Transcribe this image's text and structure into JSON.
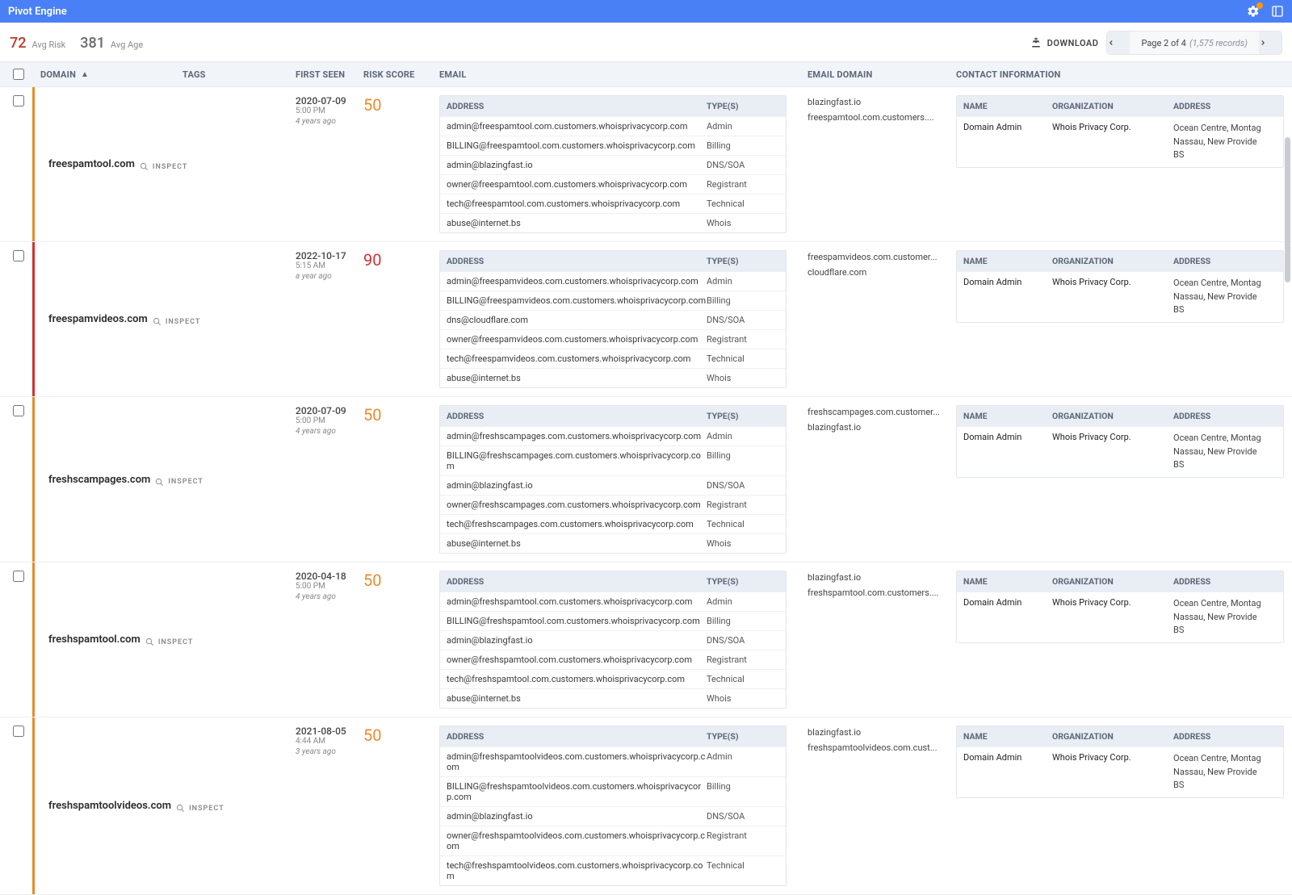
{
  "app": {
    "title": "Pivot Engine"
  },
  "summary": {
    "avg_risk": "72",
    "avg_risk_label": "Avg Risk",
    "avg_age": "381",
    "avg_age_label": "Avg Age"
  },
  "toolbar": {
    "download_label": "DOWNLOAD",
    "page_label": "Page 2 of 4",
    "records_label": "(1,575 records)"
  },
  "columns": {
    "domain": "DOMAIN",
    "tags": "TAGS",
    "first_seen": "FIRST SEEN",
    "risk": "RISK SCORE",
    "email": "EMAIL",
    "email_domain": "EMAIL DOMAIN",
    "contact": "CONTACT INFORMATION"
  },
  "sub_columns": {
    "address": "ADDRESS",
    "types": "TYPE(S)",
    "name": "NAME",
    "organization": "ORGANIZATION",
    "addr": "ADDRESS"
  },
  "inspect_label": "INSPECT",
  "risk_colors": {
    "50": "#e88b2c",
    "90": "#d43033"
  },
  "rows": [
    {
      "domain": "freespamtool.com",
      "first_seen": {
        "date": "2020-07-09",
        "time": "5:00 PM",
        "ago": "4 years ago"
      },
      "risk": "50",
      "emails": [
        {
          "address": "admin@freespamtool.com.customers.whoisprivacycorp.com",
          "type": "Admin"
        },
        {
          "address": "BILLING@freespamtool.com.customers.whoisprivacycorp.com",
          "type": "Billing"
        },
        {
          "address": "admin@blazingfast.io",
          "type": "DNS/SOA"
        },
        {
          "address": "owner@freespamtool.com.customers.whoisprivacycorp.com",
          "type": "Registrant"
        },
        {
          "address": "tech@freespamtool.com.customers.whoisprivacycorp.com",
          "type": "Technical"
        },
        {
          "address": "abuse@internet.bs",
          "type": "Whois"
        }
      ],
      "email_domains": [
        "blazingfast.io",
        "freespamtool.com.customers...."
      ],
      "contacts": [
        {
          "name": "Domain Admin",
          "org": "Whois Privacy Corp.",
          "addr": "Ocean Centre, Montag\nNassau, New Provide\nBS"
        }
      ]
    },
    {
      "domain": "freespamvideos.com",
      "first_seen": {
        "date": "2022-10-17",
        "time": "5:15 AM",
        "ago": "a year ago"
      },
      "risk": "90",
      "emails": [
        {
          "address": "admin@freespamvideos.com.customers.whoisprivacycorp.com",
          "type": "Admin"
        },
        {
          "address": "BILLING@freespamvideos.com.customers.whoisprivacycorp.com",
          "type": "Billing"
        },
        {
          "address": "dns@cloudflare.com",
          "type": "DNS/SOA"
        },
        {
          "address": "owner@freespamvideos.com.customers.whoisprivacycorp.com",
          "type": "Registrant"
        },
        {
          "address": "tech@freespamvideos.com.customers.whoisprivacycorp.com",
          "type": "Technical"
        },
        {
          "address": "abuse@internet.bs",
          "type": "Whois"
        }
      ],
      "email_domains": [
        "freespamvideos.com.customer...",
        "cloudflare.com"
      ],
      "contacts": [
        {
          "name": "Domain Admin",
          "org": "Whois Privacy Corp.",
          "addr": "Ocean Centre, Montag\nNassau, New Provide\nBS"
        }
      ]
    },
    {
      "domain": "freshscampages.com",
      "first_seen": {
        "date": "2020-07-09",
        "time": "5:00 PM",
        "ago": "4 years ago"
      },
      "risk": "50",
      "emails": [
        {
          "address": "admin@freshscampages.com.customers.whoisprivacycorp.com",
          "type": "Admin"
        },
        {
          "address": "BILLING@freshscampages.com.customers.whoisprivacycorp.com",
          "type": "Billing"
        },
        {
          "address": "admin@blazingfast.io",
          "type": "DNS/SOA"
        },
        {
          "address": "owner@freshscampages.com.customers.whoisprivacycorp.com",
          "type": "Registrant"
        },
        {
          "address": "tech@freshscampages.com.customers.whoisprivacycorp.com",
          "type": "Technical"
        },
        {
          "address": "abuse@internet.bs",
          "type": "Whois"
        }
      ],
      "email_domains": [
        "freshscampages.com.customer...",
        "blazingfast.io"
      ],
      "contacts": [
        {
          "name": "Domain Admin",
          "org": "Whois Privacy Corp.",
          "addr": "Ocean Centre, Montag\nNassau, New Provide\nBS"
        }
      ]
    },
    {
      "domain": "freshspamtool.com",
      "first_seen": {
        "date": "2020-04-18",
        "time": "5:00 PM",
        "ago": "4 years ago"
      },
      "risk": "50",
      "emails": [
        {
          "address": "admin@freshspamtool.com.customers.whoisprivacycorp.com",
          "type": "Admin"
        },
        {
          "address": "BILLING@freshspamtool.com.customers.whoisprivacycorp.com",
          "type": "Billing"
        },
        {
          "address": "admin@blazingfast.io",
          "type": "DNS/SOA"
        },
        {
          "address": "owner@freshspamtool.com.customers.whoisprivacycorp.com",
          "type": "Registrant"
        },
        {
          "address": "tech@freshspamtool.com.customers.whoisprivacycorp.com",
          "type": "Technical"
        },
        {
          "address": "abuse@internet.bs",
          "type": "Whois"
        }
      ],
      "email_domains": [
        "blazingfast.io",
        "freshspamtool.com.customers...."
      ],
      "contacts": [
        {
          "name": "Domain Admin",
          "org": "Whois Privacy Corp.",
          "addr": "Ocean Centre, Montag\nNassau, New Provide\nBS"
        }
      ]
    },
    {
      "domain": "freshspamtoolvideos.com",
      "first_seen": {
        "date": "2021-08-05",
        "time": "4:44 AM",
        "ago": "3 years ago"
      },
      "risk": "50",
      "emails": [
        {
          "address": "admin@freshspamtoolvideos.com.customers.whoisprivacycorp.com",
          "type": "Admin"
        },
        {
          "address": "BILLING@freshspamtoolvideos.com.customers.whoisprivacycorp.com",
          "type": "Billing"
        },
        {
          "address": "admin@blazingfast.io",
          "type": "DNS/SOA"
        },
        {
          "address": "owner@freshspamtoolvideos.com.customers.whoisprivacycorp.com",
          "type": "Registrant"
        },
        {
          "address": "tech@freshspamtoolvideos.com.customers.whoisprivacycorp.com",
          "type": "Technical"
        }
      ],
      "email_domains": [
        "blazingfast.io",
        "freshspamtoolvideos.com.cust..."
      ],
      "contacts": [
        {
          "name": "Domain Admin",
          "org": "Whois Privacy Corp.",
          "addr": "Ocean Centre, Montag\nNassau, New Provide\nBS"
        }
      ]
    }
  ]
}
